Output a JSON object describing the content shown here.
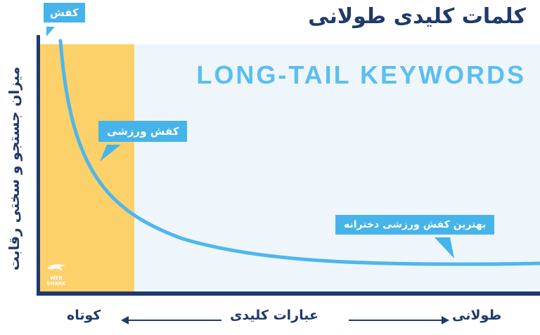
{
  "title": "کلمات کلیدی طولانی",
  "headline": "LONG-TAIL KEYWORDS",
  "y_axis_label": "میزان جستجو و سختی رقابت",
  "x_axis": {
    "left_label": "کوتاه",
    "center_label": "عبارات کلیدی",
    "right_label": "طولانی"
  },
  "callouts": {
    "head": "کفش",
    "body": "کفش ورزشی",
    "long_tail": "بهترین کفش ورزشی دخترانه"
  },
  "logo": {
    "line1": "WEB",
    "line2": "SHARK"
  },
  "colors": {
    "navy": "#1f3a6b",
    "sky": "#46b4ea",
    "yellow": "#fdd16a",
    "plot_bg": "#eef6fb"
  }
}
